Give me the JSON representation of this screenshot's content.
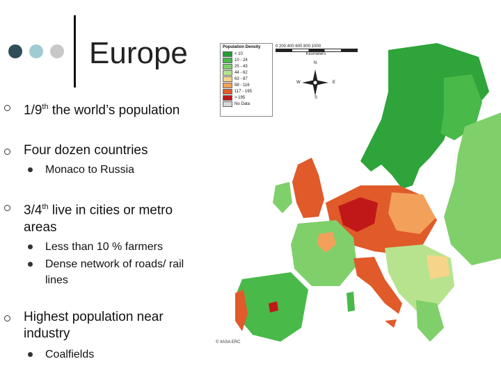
{
  "slide": {
    "title": "Europe",
    "dots": [
      "#2e4e5a",
      "#9fcbd3",
      "#c8c8c8"
    ],
    "bullets": [
      {
        "pre": "1/9",
        "sup": "th",
        "post": " the world’s population",
        "sub": []
      },
      {
        "pre": "Four dozen countries",
        "sup": "",
        "post": "",
        "sub": [
          "Monaco to Russia"
        ]
      },
      {
        "pre": "3/4",
        "sup": "th",
        "post": " live in cities or metro areas",
        "sub": [
          "Less than 10 % farmers",
          "Dense network of roads/ rail lines"
        ]
      },
      {
        "pre": "Highest population near industry",
        "sup": "",
        "post": "",
        "sub": [
          "Coalfields"
        ]
      }
    ]
  },
  "map": {
    "legend_title": "Population Density",
    "legend": [
      {
        "label": "< 10",
        "color": "#1f9e35"
      },
      {
        "label": "10 - 24",
        "color": "#49b949"
      },
      {
        "label": "25 - 43",
        "color": "#7fd06a"
      },
      {
        "label": "44 - 62",
        "color": "#b7e38f"
      },
      {
        "label": "63 - 87",
        "color": "#f6d58a"
      },
      {
        "label": "88 - 116",
        "color": "#f3a05a"
      },
      {
        "label": "117 - 195",
        "color": "#e05a2a"
      },
      {
        "label": "> 195",
        "color": "#c01818"
      },
      {
        "label": "No Data",
        "color": "#d9d9d9"
      }
    ],
    "scale_ticks": "0   200   400   600   800   1000",
    "scale_unit": "Kilometers",
    "compass": [
      "N",
      "S",
      "W",
      "E"
    ],
    "credit": "© IIASA ERC"
  }
}
